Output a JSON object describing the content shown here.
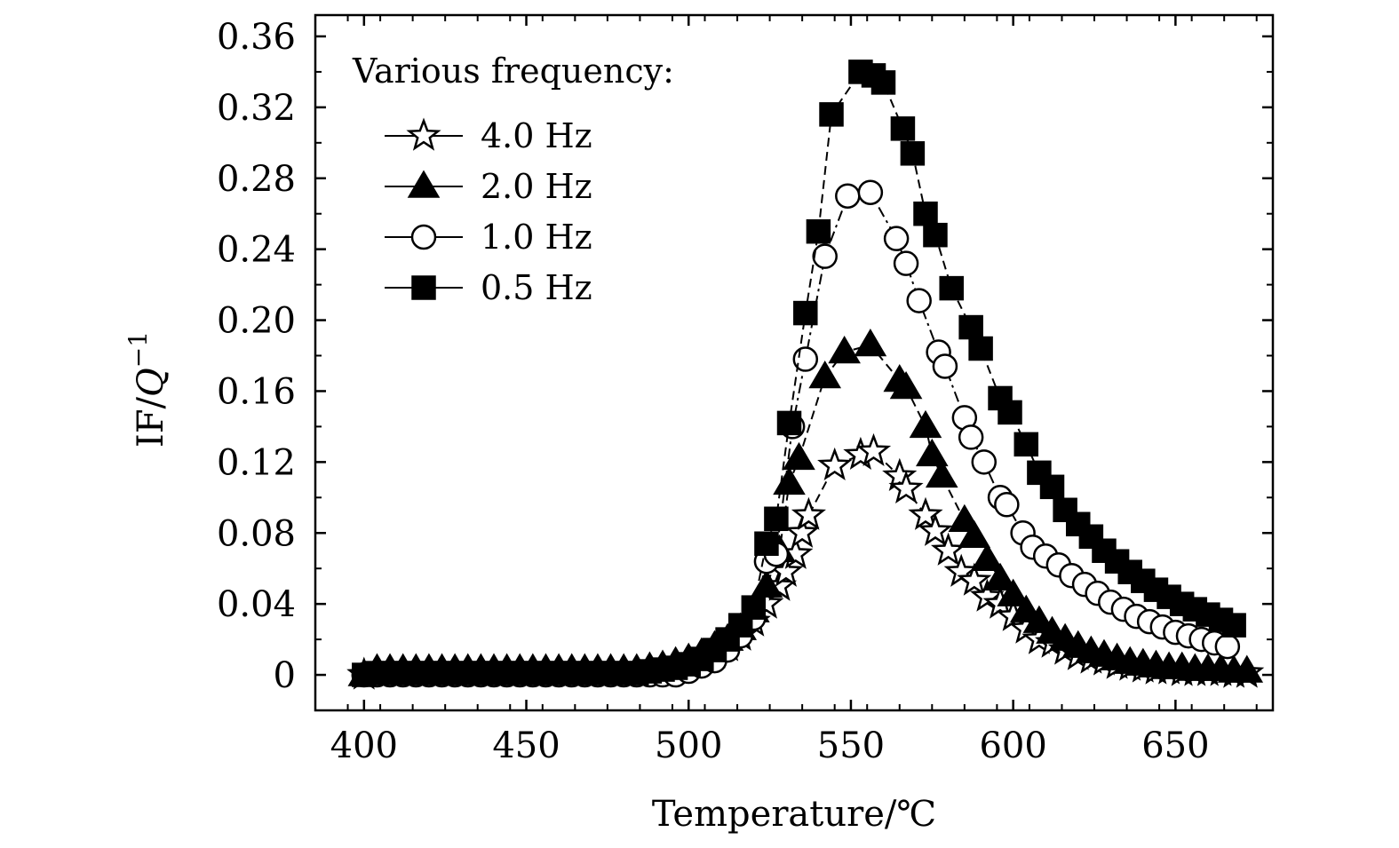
{
  "chart_data": {
    "type": "scatter",
    "xlabel": "Temperature/℃",
    "ylabel_main": "IF/",
    "ylabel_q": "Q",
    "ylabel_sup": "−1",
    "xlim": [
      385,
      680
    ],
    "ylim": [
      -0.02,
      0.372
    ],
    "x_ticks": [
      400,
      450,
      500,
      550,
      600,
      650
    ],
    "x_tick_labels": [
      "400",
      "450",
      "500",
      "550",
      "600",
      "650"
    ],
    "y_ticks": [
      0,
      0.04,
      0.08,
      0.12,
      0.16,
      0.2,
      0.24,
      0.28,
      0.32,
      0.36
    ],
    "y_tick_labels": [
      "0",
      "0.04",
      "0.08",
      "0.12",
      "0.16",
      "0.20",
      "0.24",
      "0.28",
      "0.32",
      "0.36"
    ],
    "legend": {
      "title": "Various frequency:",
      "position": "top-left"
    },
    "series": [
      {
        "name": "4.0 Hz",
        "marker": "star",
        "fill": "#ffffff",
        "line": "dash",
        "points": [
          [
            400,
            0.0
          ],
          [
            404,
            0.002
          ],
          [
            408,
            0.002
          ],
          [
            412,
            0.002
          ],
          [
            416,
            0.002
          ],
          [
            420,
            0.002
          ],
          [
            424,
            0.002
          ],
          [
            428,
            0.002
          ],
          [
            432,
            0.002
          ],
          [
            436,
            0.002
          ],
          [
            440,
            0.002
          ],
          [
            444,
            0.002
          ],
          [
            448,
            0.002
          ],
          [
            452,
            0.002
          ],
          [
            456,
            0.002
          ],
          [
            460,
            0.002
          ],
          [
            464,
            0.002
          ],
          [
            468,
            0.002
          ],
          [
            472,
            0.002
          ],
          [
            476,
            0.002
          ],
          [
            480,
            0.002
          ],
          [
            484,
            0.002
          ],
          [
            488,
            0.003
          ],
          [
            492,
            0.004
          ],
          [
            496,
            0.005
          ],
          [
            500,
            0.007
          ],
          [
            504,
            0.009
          ],
          [
            508,
            0.012
          ],
          [
            512,
            0.016
          ],
          [
            516,
            0.022
          ],
          [
            520,
            0.03
          ],
          [
            524,
            0.04
          ],
          [
            528,
            0.05
          ],
          [
            530,
            0.058
          ],
          [
            533,
            0.068
          ],
          [
            535,
            0.08
          ],
          [
            537,
            0.09
          ],
          [
            545,
            0.118
          ],
          [
            553,
            0.124
          ],
          [
            557,
            0.126
          ],
          [
            565,
            0.112
          ],
          [
            567,
            0.105
          ],
          [
            573,
            0.09
          ],
          [
            576,
            0.081
          ],
          [
            580,
            0.07
          ],
          [
            584,
            0.058
          ],
          [
            588,
            0.053
          ],
          [
            592,
            0.044
          ],
          [
            596,
            0.04
          ],
          [
            600,
            0.033
          ],
          [
            604,
            0.026
          ],
          [
            608,
            0.02
          ],
          [
            612,
            0.018
          ],
          [
            616,
            0.014
          ],
          [
            620,
            0.011
          ],
          [
            624,
            0.009
          ],
          [
            628,
            0.008
          ],
          [
            632,
            0.006
          ],
          [
            636,
            0.005
          ],
          [
            640,
            0.004
          ],
          [
            644,
            0.003
          ],
          [
            648,
            0.003
          ],
          [
            652,
            0.002
          ],
          [
            656,
            0.002
          ],
          [
            660,
            0.002
          ],
          [
            664,
            0.002
          ],
          [
            668,
            0.001
          ],
          [
            672,
            0.001
          ]
        ]
      },
      {
        "name": "2.0 Hz",
        "marker": "triangle",
        "fill": "#000000",
        "line": "dash",
        "points": [
          [
            400,
            0.0
          ],
          [
            404,
            0.003
          ],
          [
            408,
            0.003
          ],
          [
            412,
            0.003
          ],
          [
            416,
            0.003
          ],
          [
            420,
            0.003
          ],
          [
            424,
            0.003
          ],
          [
            428,
            0.003
          ],
          [
            432,
            0.003
          ],
          [
            436,
            0.003
          ],
          [
            440,
            0.003
          ],
          [
            444,
            0.003
          ],
          [
            448,
            0.003
          ],
          [
            452,
            0.003
          ],
          [
            456,
            0.003
          ],
          [
            460,
            0.003
          ],
          [
            464,
            0.003
          ],
          [
            468,
            0.003
          ],
          [
            472,
            0.003
          ],
          [
            476,
            0.003
          ],
          [
            480,
            0.003
          ],
          [
            484,
            0.003
          ],
          [
            488,
            0.004
          ],
          [
            492,
            0.005
          ],
          [
            496,
            0.007
          ],
          [
            500,
            0.009
          ],
          [
            504,
            0.012
          ],
          [
            508,
            0.016
          ],
          [
            512,
            0.02
          ],
          [
            516,
            0.026
          ],
          [
            520,
            0.036
          ],
          [
            524,
            0.05
          ],
          [
            528,
            0.07
          ],
          [
            531,
            0.108
          ],
          [
            534,
            0.122
          ],
          [
            542,
            0.168
          ],
          [
            548,
            0.182
          ],
          [
            556,
            0.186
          ],
          [
            565,
            0.166
          ],
          [
            567,
            0.162
          ],
          [
            573,
            0.14
          ],
          [
            575,
            0.124
          ],
          [
            578,
            0.112
          ],
          [
            585,
            0.087
          ],
          [
            588,
            0.078
          ],
          [
            592,
            0.065
          ],
          [
            596,
            0.054
          ],
          [
            600,
            0.045
          ],
          [
            604,
            0.036
          ],
          [
            608,
            0.03
          ],
          [
            612,
            0.024
          ],
          [
            616,
            0.02
          ],
          [
            620,
            0.016
          ],
          [
            624,
            0.013
          ],
          [
            628,
            0.011
          ],
          [
            632,
            0.009
          ],
          [
            636,
            0.007
          ],
          [
            640,
            0.006
          ],
          [
            644,
            0.005
          ],
          [
            648,
            0.004
          ],
          [
            652,
            0.004
          ],
          [
            656,
            0.003
          ],
          [
            660,
            0.003
          ],
          [
            664,
            0.003
          ],
          [
            668,
            0.002
          ],
          [
            672,
            0.002
          ]
        ]
      },
      {
        "name": "1.0 Hz",
        "marker": "circle",
        "fill": "#ffffff",
        "line": "dashdot",
        "points": [
          [
            400,
            0.0
          ],
          [
            404,
            0.0
          ],
          [
            408,
            0.0
          ],
          [
            412,
            0.0
          ],
          [
            416,
            0.0
          ],
          [
            420,
            0.0
          ],
          [
            424,
            0.0
          ],
          [
            428,
            0.0
          ],
          [
            432,
            0.0
          ],
          [
            436,
            0.0
          ],
          [
            440,
            0.0
          ],
          [
            444,
            0.0
          ],
          [
            448,
            0.0
          ],
          [
            452,
            0.0
          ],
          [
            456,
            0.0
          ],
          [
            460,
            0.0
          ],
          [
            464,
            0.0
          ],
          [
            468,
            0.0
          ],
          [
            472,
            0.0
          ],
          [
            476,
            0.0
          ],
          [
            480,
            0.0
          ],
          [
            484,
            0.0
          ],
          [
            488,
            0.0
          ],
          [
            492,
            0.0
          ],
          [
            496,
            0.0
          ],
          [
            500,
            0.002
          ],
          [
            504,
            0.005
          ],
          [
            508,
            0.008
          ],
          [
            512,
            0.014
          ],
          [
            516,
            0.022
          ],
          [
            520,
            0.032
          ],
          [
            524,
            0.064
          ],
          [
            527,
            0.068
          ],
          [
            532,
            0.14
          ],
          [
            536,
            0.178
          ],
          [
            542,
            0.236
          ],
          [
            549,
            0.27
          ],
          [
            556,
            0.272
          ],
          [
            564,
            0.246
          ],
          [
            567,
            0.232
          ],
          [
            571,
            0.211
          ],
          [
            577,
            0.182
          ],
          [
            579,
            0.174
          ],
          [
            585,
            0.145
          ],
          [
            587,
            0.134
          ],
          [
            591,
            0.12
          ],
          [
            596,
            0.1
          ],
          [
            598,
            0.096
          ],
          [
            603,
            0.08
          ],
          [
            606,
            0.072
          ],
          [
            610,
            0.067
          ],
          [
            614,
            0.062
          ],
          [
            618,
            0.056
          ],
          [
            622,
            0.051
          ],
          [
            626,
            0.046
          ],
          [
            630,
            0.041
          ],
          [
            634,
            0.037
          ],
          [
            638,
            0.033
          ],
          [
            642,
            0.03
          ],
          [
            646,
            0.027
          ],
          [
            650,
            0.024
          ],
          [
            654,
            0.022
          ],
          [
            658,
            0.02
          ],
          [
            662,
            0.018
          ],
          [
            666,
            0.016
          ]
        ]
      },
      {
        "name": "0.5 Hz",
        "marker": "square",
        "fill": "#000000",
        "line": "dash",
        "points": [
          [
            400,
            0.0
          ],
          [
            404,
            0.001
          ],
          [
            408,
            0.001
          ],
          [
            412,
            0.001
          ],
          [
            416,
            0.001
          ],
          [
            420,
            0.001
          ],
          [
            424,
            0.001
          ],
          [
            428,
            0.001
          ],
          [
            432,
            0.001
          ],
          [
            436,
            0.001
          ],
          [
            440,
            0.001
          ],
          [
            444,
            0.001
          ],
          [
            448,
            0.001
          ],
          [
            452,
            0.001
          ],
          [
            456,
            0.001
          ],
          [
            460,
            0.001
          ],
          [
            464,
            0.001
          ],
          [
            468,
            0.001
          ],
          [
            472,
            0.001
          ],
          [
            476,
            0.001
          ],
          [
            480,
            0.001
          ],
          [
            484,
            0.001
          ],
          [
            488,
            0.002
          ],
          [
            492,
            0.003
          ],
          [
            496,
            0.004
          ],
          [
            500,
            0.006
          ],
          [
            504,
            0.009
          ],
          [
            508,
            0.014
          ],
          [
            512,
            0.02
          ],
          [
            516,
            0.028
          ],
          [
            520,
            0.038
          ],
          [
            524,
            0.074
          ],
          [
            527,
            0.088
          ],
          [
            531,
            0.142
          ],
          [
            536,
            0.204
          ],
          [
            540,
            0.25
          ],
          [
            544,
            0.316
          ],
          [
            553,
            0.34
          ],
          [
            557,
            0.338
          ],
          [
            560,
            0.334
          ],
          [
            566,
            0.308
          ],
          [
            569,
            0.294
          ],
          [
            573,
            0.26
          ],
          [
            576,
            0.248
          ],
          [
            581,
            0.218
          ],
          [
            587,
            0.196
          ],
          [
            590,
            0.184
          ],
          [
            596,
            0.156
          ],
          [
            599,
            0.148
          ],
          [
            604,
            0.13
          ],
          [
            608,
            0.114
          ],
          [
            612,
            0.106
          ],
          [
            616,
            0.093
          ],
          [
            620,
            0.085
          ],
          [
            624,
            0.078
          ],
          [
            628,
            0.07
          ],
          [
            632,
            0.064
          ],
          [
            636,
            0.058
          ],
          [
            640,
            0.053
          ],
          [
            644,
            0.048
          ],
          [
            648,
            0.044
          ],
          [
            652,
            0.04
          ],
          [
            656,
            0.037
          ],
          [
            660,
            0.034
          ],
          [
            664,
            0.031
          ],
          [
            668,
            0.028
          ]
        ]
      }
    ]
  }
}
